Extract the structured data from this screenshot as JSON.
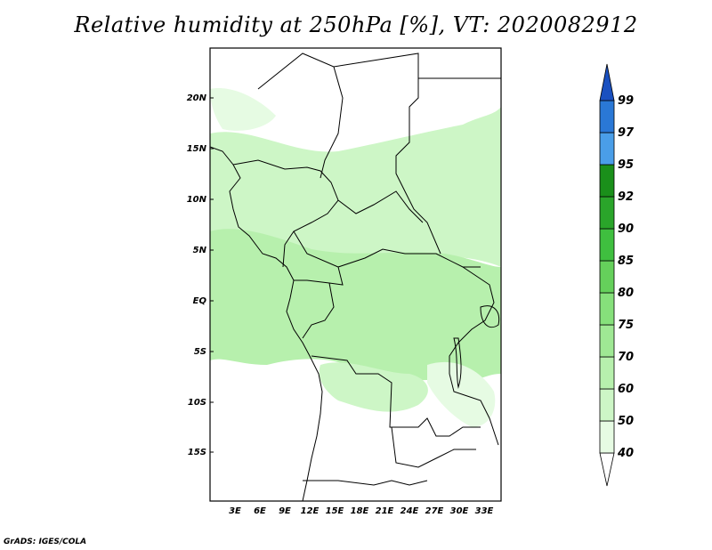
{
  "figure": {
    "title": "Relative humidity at 250hPa [%], VT: 2020082912",
    "credit": "GrADS: IGES/COLA"
  },
  "map": {
    "lat_ticks": [
      "20N",
      "15N",
      "10N",
      "5N",
      "EQ",
      "5S",
      "10S",
      "15S"
    ],
    "lon_ticks": [
      "3E",
      "6E",
      "9E",
      "12E",
      "15E",
      "18E",
      "21E",
      "24E",
      "27E",
      "30E",
      "33E"
    ],
    "lat_range_deg": [
      -20,
      25
    ],
    "lon_range_deg": [
      0,
      35
    ],
    "colors": {
      "land_outline": "#000000",
      "background": "#ffffff"
    }
  },
  "colorbar": {
    "levels": [
      "40",
      "50",
      "60",
      "70",
      "75",
      "80",
      "85",
      "90",
      "92",
      "95",
      "97",
      "99"
    ],
    "colors": [
      "#ffffff",
      "#e6fbe3",
      "#cdf6c6",
      "#b7f0ad",
      "#9fe894",
      "#86e07b",
      "#65d05b",
      "#3fbf3f",
      "#2aa52a",
      "#1a8f1a",
      "#4a9ee8",
      "#2a78d6",
      "#1a50c0"
    ]
  }
}
